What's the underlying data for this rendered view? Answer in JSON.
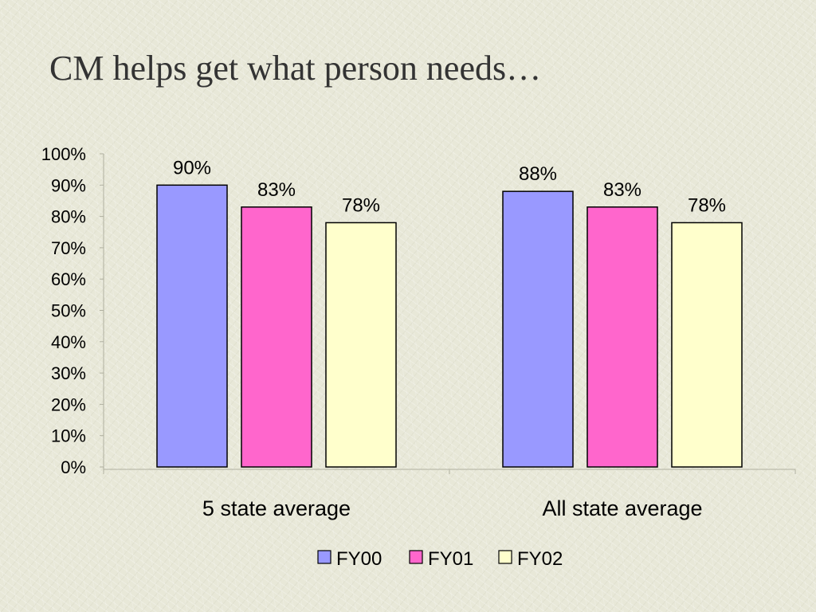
{
  "slide": {
    "title": "CM helps get what person needs…"
  },
  "chart_data": {
    "type": "bar",
    "title": "",
    "xlabel": "",
    "ylabel": "",
    "categories": [
      "5 state average",
      "All state average"
    ],
    "series": [
      {
        "name": "FY00",
        "values": [
          90,
          88
        ],
        "color": "#9999ff",
        "labels": [
          "90%",
          "88%"
        ]
      },
      {
        "name": "FY01",
        "values": [
          83,
          83
        ],
        "color": "#ff66cc",
        "labels": [
          "83%",
          "83%"
        ]
      },
      {
        "name": "FY02",
        "values": [
          78,
          78
        ],
        "color": "#ffffcc",
        "labels": [
          "78%",
          "78%"
        ]
      }
    ],
    "ylim": [
      0,
      100
    ],
    "yticks": [
      0,
      10,
      20,
      30,
      40,
      50,
      60,
      70,
      80,
      90,
      100
    ],
    "ytick_labels": [
      "0%",
      "10%",
      "20%",
      "30%",
      "40%",
      "50%",
      "60%",
      "70%",
      "80%",
      "90%",
      "100%"
    ],
    "grid": false,
    "legend_position": "bottom"
  }
}
